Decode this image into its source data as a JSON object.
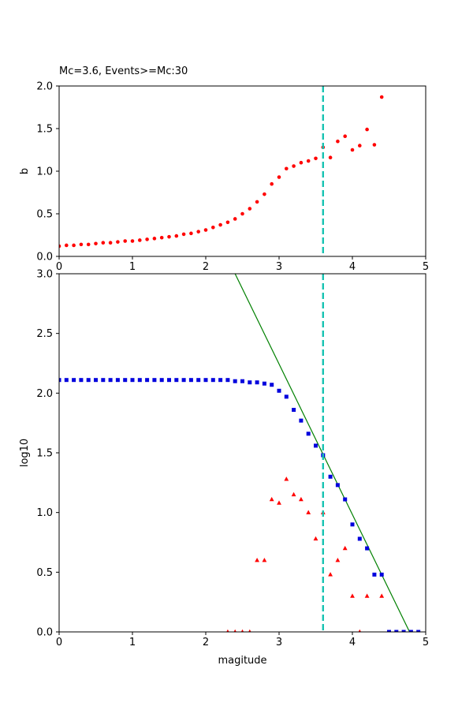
{
  "chart_data": [
    {
      "type": "scatter",
      "title": "Mc=3.6, Events>=Mc:30",
      "xlabel": "",
      "ylabel": "b",
      "xlim": [
        0,
        5
      ],
      "ylim": [
        0,
        2.0
      ],
      "xticks": [
        0,
        1,
        2,
        3,
        4,
        5
      ],
      "yticks": [
        0.0,
        0.5,
        1.0,
        1.5,
        2.0
      ],
      "grid": false,
      "vline": {
        "x": 3.6,
        "color": "#17c3b2",
        "style": "dashed"
      },
      "series": [
        {
          "color": "#ff0000",
          "marker": "circle",
          "x": [
            0.0,
            0.1,
            0.2,
            0.3,
            0.4,
            0.5,
            0.6,
            0.7,
            0.8,
            0.9,
            1.0,
            1.1,
            1.2,
            1.3,
            1.4,
            1.5,
            1.6,
            1.7,
            1.8,
            1.9,
            2.0,
            2.1,
            2.2,
            2.3,
            2.4,
            2.5,
            2.6,
            2.7,
            2.8,
            2.9,
            3.0,
            3.1,
            3.2,
            3.3,
            3.4,
            3.5,
            3.6,
            3.7,
            3.8,
            3.9,
            4.0,
            4.1,
            4.2,
            4.3,
            4.4
          ],
          "y": [
            0.12,
            0.13,
            0.13,
            0.14,
            0.14,
            0.15,
            0.16,
            0.16,
            0.17,
            0.18,
            0.18,
            0.19,
            0.2,
            0.21,
            0.22,
            0.23,
            0.24,
            0.26,
            0.27,
            0.29,
            0.31,
            0.34,
            0.37,
            0.4,
            0.44,
            0.5,
            0.56,
            0.64,
            0.73,
            0.85,
            0.93,
            1.03,
            1.06,
            1.1,
            1.12,
            1.15,
            1.28,
            1.16,
            1.35,
            1.41,
            1.25,
            1.3,
            1.49,
            1.31,
            1.87
          ]
        }
      ]
    },
    {
      "type": "scatter",
      "title": "",
      "xlabel": "magitude",
      "ylabel": "log10",
      "xlim": [
        0,
        5
      ],
      "ylim": [
        0,
        3.0
      ],
      "xticks": [
        0,
        1,
        2,
        3,
        4,
        5
      ],
      "yticks": [
        0.0,
        0.5,
        1.0,
        1.5,
        2.0,
        2.5,
        3.0
      ],
      "grid": false,
      "vline": {
        "x": 3.6,
        "color": "#17c3b2",
        "style": "dashed"
      },
      "fit_line": {
        "color": "#008000",
        "x": [
          2.4,
          4.78
        ],
        "y": [
          3.0,
          0.0
        ]
      },
      "series": [
        {
          "color": "#0000dd",
          "marker": "square",
          "x": [
            0.0,
            0.1,
            0.2,
            0.3,
            0.4,
            0.5,
            0.6,
            0.7,
            0.8,
            0.9,
            1.0,
            1.1,
            1.2,
            1.3,
            1.4,
            1.5,
            1.6,
            1.7,
            1.8,
            1.9,
            2.0,
            2.1,
            2.2,
            2.3,
            2.4,
            2.5,
            2.6,
            2.7,
            2.8,
            2.9,
            3.0,
            3.1,
            3.2,
            3.3,
            3.4,
            3.5,
            3.6,
            3.7,
            3.8,
            3.9,
            4.0,
            4.1,
            4.2,
            4.3,
            4.4,
            4.5,
            4.6,
            4.7,
            4.8,
            4.9
          ],
          "y": [
            2.11,
            2.11,
            2.11,
            2.11,
            2.11,
            2.11,
            2.11,
            2.11,
            2.11,
            2.11,
            2.11,
            2.11,
            2.11,
            2.11,
            2.11,
            2.11,
            2.11,
            2.11,
            2.11,
            2.11,
            2.11,
            2.11,
            2.11,
            2.11,
            2.1,
            2.1,
            2.09,
            2.09,
            2.08,
            2.07,
            2.02,
            1.97,
            1.86,
            1.77,
            1.66,
            1.56,
            1.48,
            1.3,
            1.23,
            1.11,
            0.9,
            0.78,
            0.7,
            0.48,
            0.48,
            0.0,
            0.0,
            0.0,
            0.0,
            0.0
          ]
        },
        {
          "color": "#ff0000",
          "marker": "triangle",
          "x": [
            2.3,
            2.4,
            2.5,
            2.6,
            2.7,
            2.8,
            2.9,
            3.0,
            3.1,
            3.2,
            3.3,
            3.4,
            3.5,
            3.6,
            3.7,
            3.8,
            3.9,
            4.0,
            4.1,
            4.2,
            4.4
          ],
          "y": [
            0.0,
            0.0,
            0.0,
            0.0,
            0.6,
            0.6,
            1.11,
            1.08,
            1.28,
            1.15,
            1.11,
            1.0,
            0.78,
            1.0,
            0.48,
            0.6,
            0.7,
            0.3,
            0.0,
            0.3,
            0.3
          ]
        }
      ]
    }
  ]
}
